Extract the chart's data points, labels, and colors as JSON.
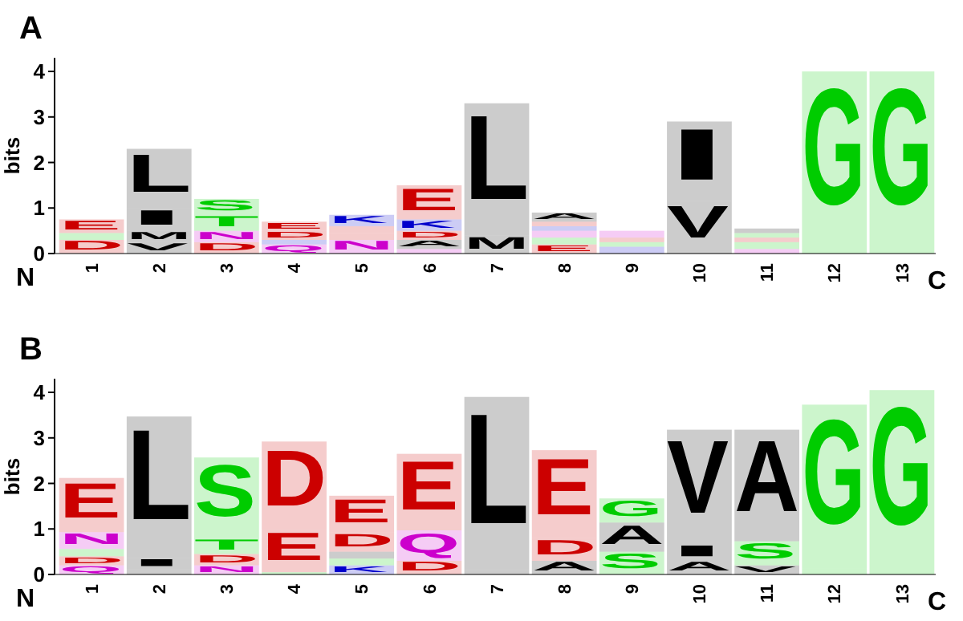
{
  "chart_data": [
    {
      "type": "bar",
      "stacked": true,
      "title": "A",
      "ylabel": "bits",
      "categories": [
        "1",
        "2",
        "3",
        "4",
        "5",
        "6",
        "7",
        "8",
        "9",
        "10",
        "11",
        "12",
        "13"
      ],
      "ylim": [
        0,
        4.3
      ],
      "yticks": [
        0,
        1,
        2,
        3,
        4
      ],
      "annotations": [
        "N",
        "C"
      ],
      "series": [
        {
          "values": [
            0.3,
            0.25,
            0.25,
            0.2,
            0.3,
            0.1,
            0.4,
            0.2,
            0.15,
            0.05,
            0.1,
            4.0,
            4.0
          ],
          "value_labels": [
            "D",
            "V",
            "D",
            "Q",
            "N",
            null,
            "M",
            "E",
            null,
            null,
            null,
            "G",
            "G"
          ],
          "colors": [
            "#cc0000",
            "#000000",
            "#cc0000",
            "#cc00cc",
            "#cc00cc",
            "#cc00cc",
            "#000000",
            "#cc0000",
            "#0000cc",
            "#000000",
            "#cc00cc",
            "#00cc00",
            "#00cc00"
          ]
        },
        {
          "values": [
            0.15,
            0.25,
            0.25,
            0.1,
            0.15,
            0.2,
            2.9,
            0.15,
            0.1,
            1.1,
            0.15,
            null,
            null
          ],
          "value_labels": [
            null,
            "M",
            "N",
            null,
            null,
            "A",
            "L",
            null,
            null,
            "V",
            null,
            null,
            null
          ],
          "colors": [
            "#00cc00",
            "#000000",
            "#cc00cc",
            "#0000cc",
            "#cc0000",
            "#000000",
            "#000000",
            "#00cc00",
            "#00cc00",
            "#000000",
            "#00cc00",
            null,
            null
          ]
        },
        {
          "values": [
            0.3,
            0.5,
            0.35,
            0.2,
            0.15,
            0.2,
            null,
            0.15,
            0.1,
            1.75,
            0.1,
            null,
            null
          ],
          "value_labels": [
            "E",
            "I",
            "T",
            "D",
            null,
            "D",
            null,
            null,
            null,
            "I",
            null,
            null,
            null
          ],
          "colors": [
            "#cc0000",
            "#000000",
            "#00cc00",
            "#cc0000",
            "#cc0000",
            "#cc0000",
            null,
            "#cc00cc",
            "#cc0000",
            "#000000",
            "#cc0000",
            null,
            null
          ]
        },
        {
          "values": [
            null,
            1.3,
            0.35,
            0.2,
            0.25,
            0.25,
            null,
            0.1,
            0.15,
            null,
            0.1,
            null,
            null
          ],
          "value_labels": [
            null,
            "L",
            "S",
            "E",
            "K",
            "K",
            null,
            null,
            null,
            null,
            null,
            null,
            null
          ],
          "colors": [
            null,
            "#000000",
            "#00cc00",
            "#cc0000",
            "#0000cc",
            "#0000cc",
            null,
            "#0000cc",
            "#cc00cc",
            null,
            "#00cc00",
            null,
            null
          ]
        },
        {
          "values": [
            null,
            null,
            null,
            null,
            null,
            0.75,
            null,
            0.1,
            null,
            null,
            0.1,
            null,
            null
          ],
          "value_labels": [
            null,
            null,
            null,
            null,
            null,
            "E",
            null,
            null,
            null,
            null,
            null,
            null,
            null
          ],
          "colors": [
            null,
            null,
            null,
            null,
            null,
            "#cc0000",
            null,
            "#cc0000",
            null,
            null,
            "#000000",
            null,
            null
          ]
        },
        {
          "values": [
            null,
            null,
            null,
            null,
            null,
            null,
            null,
            0.2,
            null,
            null,
            null,
            null,
            null
          ],
          "value_labels": [
            null,
            null,
            null,
            null,
            null,
            null,
            null,
            "A",
            null,
            null,
            null,
            null,
            null
          ],
          "colors": [
            null,
            null,
            null,
            null,
            null,
            null,
            null,
            "#000000",
            null,
            null,
            null,
            null,
            null
          ]
        }
      ]
    },
    {
      "type": "bar",
      "stacked": true,
      "title": "B",
      "ylabel": "bits",
      "categories": [
        "1",
        "2",
        "3",
        "4",
        "5",
        "6",
        "7",
        "8",
        "9",
        "10",
        "11",
        "12",
        "13"
      ],
      "ylim": [
        0,
        4.3
      ],
      "yticks": [
        0,
        1,
        2,
        3,
        4
      ],
      "annotations": [
        "N",
        "C"
      ],
      "series": [
        {
          "values": [
            0.2,
            0.12,
            0.2,
            0.05,
            0.2,
            0.3,
            0.1,
            0.3,
            0.5,
            0.3,
            0.2,
            0.14,
            4.05
          ],
          "value_labels": [
            "Q",
            null,
            "N",
            null,
            "K",
            "D",
            null,
            "A",
            "S",
            "A",
            "V",
            null,
            "G"
          ],
          "colors": [
            "#cc00cc",
            "#000000",
            "#cc00cc",
            "#00cc00",
            "#0000cc",
            "#cc0000",
            "#000000",
            "#000000",
            "#00cc00",
            "#000000",
            "#000000",
            "#00cc00",
            "#00cc00"
          ]
        },
        {
          "values": [
            0.2,
            0.24,
            0.25,
            0.95,
            0.15,
            0.67,
            3.8,
            0.5,
            0.64,
            0.37,
            0.53,
            3.59,
            null
          ],
          "value_labels": [
            "D",
            "I",
            "D",
            "E",
            null,
            "Q",
            "L",
            "D",
            "A",
            "I",
            "S",
            "G",
            null
          ],
          "colors": [
            "#cc0000",
            "#000000",
            "#cc0000",
            "#cc0000",
            "#00cc00",
            "#cc00cc",
            "#000000",
            "#cc0000",
            "#000000",
            "#000000",
            "#00cc00",
            "#00cc00",
            null
          ]
        },
        {
          "values": [
            0.16,
            3.11,
            0.35,
            1.92,
            0.15,
            1.68,
            null,
            1.93,
            0.53,
            2.51,
            2.45,
            null,
            null
          ],
          "value_labels": [
            null,
            "L",
            "T",
            "D",
            null,
            "E",
            null,
            "E",
            "G",
            "V",
            "A",
            null,
            null
          ],
          "colors": [
            "#00cc00",
            "#000000",
            "#00cc00",
            "#cc0000",
            "#000000",
            "#cc0000",
            null,
            "#cc0000",
            "#00cc00",
            "#000000",
            "#000000",
            null,
            null
          ]
        },
        {
          "values": [
            0.37,
            null,
            1.77,
            null,
            0.43,
            null,
            null,
            null,
            null,
            null,
            null,
            null,
            null
          ],
          "value_labels": [
            "N",
            null,
            "S",
            null,
            "D",
            null,
            null,
            null,
            null,
            null,
            null,
            null,
            null
          ],
          "colors": [
            "#cc00cc",
            null,
            "#00cc00",
            null,
            "#cc0000",
            null,
            null,
            null,
            null,
            null,
            null,
            null,
            null
          ]
        },
        {
          "values": [
            1.19,
            null,
            null,
            null,
            0.8,
            null,
            null,
            null,
            null,
            null,
            null,
            null,
            null
          ],
          "value_labels": [
            "E",
            null,
            null,
            null,
            "E",
            null,
            null,
            null,
            null,
            null,
            null,
            null,
            null
          ],
          "colors": [
            "#cc0000",
            null,
            null,
            null,
            "#cc0000",
            null,
            null,
            null,
            null,
            null,
            null,
            null,
            null
          ]
        }
      ]
    }
  ]
}
